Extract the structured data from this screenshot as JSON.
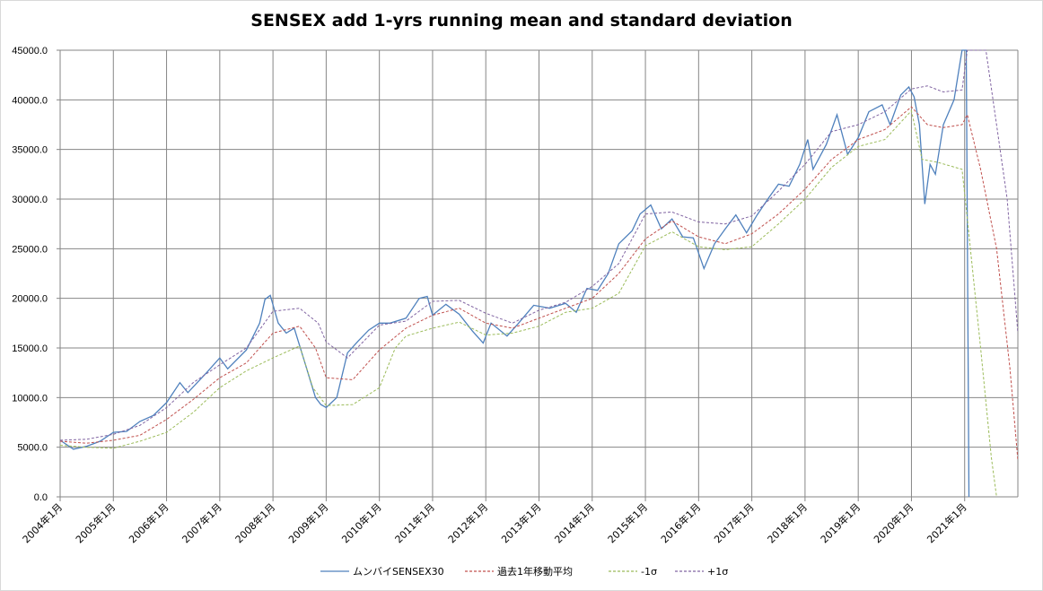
{
  "chart_data": {
    "type": "line",
    "title": "SENSEX add 1-yrs running mean and standard deviation",
    "ylim": [
      0,
      45000
    ],
    "y_ticks": [
      "0.0",
      "5000.0",
      "10000.0",
      "15000.0",
      "20000.0",
      "25000.0",
      "30000.0",
      "35000.0",
      "40000.0",
      "45000.0"
    ],
    "x_ticks": [
      "2004年1月",
      "2005年1月",
      "2006年1月",
      "2007年1月",
      "2008年1月",
      "2009年1月",
      "2010年1月",
      "2011年1月",
      "2012年1月",
      "2013年1月",
      "2014年1月",
      "2015年1月",
      "2016年1月",
      "2017年1月",
      "2018年1月",
      "2019年1月",
      "2020年1月",
      "2021年1月"
    ],
    "x_period": "monthly, 2004-01 to 2021-12",
    "grid": "vertical and horizontal",
    "legend_position": "bottom",
    "series": [
      {
        "name": "ムンバイSENSEX30",
        "color": "#4f81bd",
        "style": "solid",
        "points": [
          [
            2004,
            5700
          ],
          [
            2004.25,
            4800
          ],
          [
            2004.5,
            5100
          ],
          [
            2004.75,
            5600
          ],
          [
            2005,
            6500
          ],
          [
            2005.25,
            6600
          ],
          [
            2005.5,
            7600
          ],
          [
            2005.75,
            8200
          ],
          [
            2006,
            9500
          ],
          [
            2006.25,
            11500
          ],
          [
            2006.4,
            10500
          ],
          [
            2006.75,
            12500
          ],
          [
            2007,
            14000
          ],
          [
            2007.15,
            12900
          ],
          [
            2007.5,
            14800
          ],
          [
            2007.75,
            17500
          ],
          [
            2007.85,
            19900
          ],
          [
            2007.95,
            20300
          ],
          [
            2008.1,
            17500
          ],
          [
            2008.25,
            16500
          ],
          [
            2008.4,
            17000
          ],
          [
            2008.6,
            13500
          ],
          [
            2008.8,
            10000
          ],
          [
            2008.9,
            9300
          ],
          [
            2009,
            9000
          ],
          [
            2009.2,
            10000
          ],
          [
            2009.4,
            14500
          ],
          [
            2009.6,
            15700
          ],
          [
            2009.8,
            16800
          ],
          [
            2010,
            17500
          ],
          [
            2010.2,
            17500
          ],
          [
            2010.5,
            18000
          ],
          [
            2010.75,
            20000
          ],
          [
            2010.9,
            20200
          ],
          [
            2011,
            18300
          ],
          [
            2011.25,
            19400
          ],
          [
            2011.5,
            18400
          ],
          [
            2011.75,
            16700
          ],
          [
            2011.95,
            15500
          ],
          [
            2012.1,
            17500
          ],
          [
            2012.4,
            16200
          ],
          [
            2012.6,
            17400
          ],
          [
            2012.9,
            19300
          ],
          [
            2013.2,
            19000
          ],
          [
            2013.5,
            19500
          ],
          [
            2013.7,
            18600
          ],
          [
            2013.9,
            21000
          ],
          [
            2014.1,
            20800
          ],
          [
            2014.3,
            22500
          ],
          [
            2014.5,
            25500
          ],
          [
            2014.75,
            26800
          ],
          [
            2014.9,
            28500
          ],
          [
            2015.1,
            29400
          ],
          [
            2015.3,
            27000
          ],
          [
            2015.5,
            28000
          ],
          [
            2015.7,
            26200
          ],
          [
            2015.9,
            26100
          ],
          [
            2016.1,
            23000
          ],
          [
            2016.3,
            25500
          ],
          [
            2016.5,
            27000
          ],
          [
            2016.7,
            28400
          ],
          [
            2016.9,
            26600
          ],
          [
            2017.1,
            28400
          ],
          [
            2017.3,
            30000
          ],
          [
            2017.5,
            31500
          ],
          [
            2017.7,
            31300
          ],
          [
            2017.9,
            33500
          ],
          [
            2018.05,
            36000
          ],
          [
            2018.15,
            33000
          ],
          [
            2018.4,
            35500
          ],
          [
            2018.6,
            38500
          ],
          [
            2018.8,
            34500
          ],
          [
            2019.0,
            36200
          ],
          [
            2019.2,
            38800
          ],
          [
            2019.45,
            39500
          ],
          [
            2019.6,
            37500
          ],
          [
            2019.8,
            40500
          ],
          [
            2019.95,
            41300
          ],
          [
            2020.05,
            40300
          ],
          [
            2020.15,
            37500
          ],
          [
            2020.25,
            29500
          ],
          [
            2020.35,
            33500
          ],
          [
            2020.45,
            32500
          ],
          [
            2020.6,
            37500
          ],
          [
            2020.8,
            40000
          ],
          [
            2020.95,
            45000
          ],
          [
            2021.03,
            45000
          ],
          [
            2021.08,
            0
          ]
        ]
      },
      {
        "name": "過去1年移動平均",
        "color": "#c0504d",
        "style": "dashed",
        "points": [
          [
            2004,
            5600
          ],
          [
            2004.5,
            5400
          ],
          [
            2005,
            5700
          ],
          [
            2005.5,
            6200
          ],
          [
            2006,
            7800
          ],
          [
            2006.5,
            9800
          ],
          [
            2007,
            12000
          ],
          [
            2007.5,
            13500
          ],
          [
            2008,
            16500
          ],
          [
            2008.5,
            17200
          ],
          [
            2008.8,
            15000
          ],
          [
            2009,
            12000
          ],
          [
            2009.5,
            11800
          ],
          [
            2010,
            14800
          ],
          [
            2010.5,
            17000
          ],
          [
            2011,
            18300
          ],
          [
            2011.5,
            19000
          ],
          [
            2012,
            17500
          ],
          [
            2012.5,
            17000
          ],
          [
            2013,
            18000
          ],
          [
            2013.5,
            19000
          ],
          [
            2014,
            20000
          ],
          [
            2014.5,
            22500
          ],
          [
            2015,
            26000
          ],
          [
            2015.5,
            27800
          ],
          [
            2016,
            26200
          ],
          [
            2016.5,
            25500
          ],
          [
            2017,
            26500
          ],
          [
            2017.5,
            28500
          ],
          [
            2018,
            31000
          ],
          [
            2018.5,
            34000
          ],
          [
            2019,
            36000
          ],
          [
            2019.5,
            37000
          ],
          [
            2020,
            39300
          ],
          [
            2020.3,
            37500
          ],
          [
            2020.6,
            37200
          ],
          [
            2020.95,
            37500
          ],
          [
            2021.05,
            38500
          ],
          [
            2021.3,
            33000
          ],
          [
            2021.6,
            25000
          ],
          [
            2021.85,
            13000
          ],
          [
            2022,
            3700
          ]
        ]
      },
      {
        "name": "-1σ",
        "color": "#9bbb59",
        "style": "dashed",
        "points": [
          [
            2004,
            5200
          ],
          [
            2004.5,
            5000
          ],
          [
            2005,
            4900
          ],
          [
            2005.5,
            5600
          ],
          [
            2006,
            6500
          ],
          [
            2006.5,
            8500
          ],
          [
            2007,
            11000
          ],
          [
            2007.5,
            12700
          ],
          [
            2008,
            14000
          ],
          [
            2008.5,
            15200
          ],
          [
            2008.75,
            11000
          ],
          [
            2009,
            9200
          ],
          [
            2009.5,
            9300
          ],
          [
            2010,
            11000
          ],
          [
            2010.3,
            15000
          ],
          [
            2010.5,
            16200
          ],
          [
            2011,
            17000
          ],
          [
            2011.5,
            17600
          ],
          [
            2012,
            16300
          ],
          [
            2012.5,
            16500
          ],
          [
            2013,
            17200
          ],
          [
            2013.5,
            18600
          ],
          [
            2014,
            19000
          ],
          [
            2014.5,
            20500
          ],
          [
            2015,
            25300
          ],
          [
            2015.5,
            26700
          ],
          [
            2016,
            25200
          ],
          [
            2016.5,
            24900
          ],
          [
            2017,
            25200
          ],
          [
            2017.5,
            27500
          ],
          [
            2018,
            30000
          ],
          [
            2018.5,
            33200
          ],
          [
            2019,
            35300
          ],
          [
            2019.5,
            36000
          ],
          [
            2020,
            38900
          ],
          [
            2020.2,
            34000
          ],
          [
            2020.5,
            33700
          ],
          [
            2020.95,
            33000
          ],
          [
            2021.05,
            28000
          ],
          [
            2021.3,
            15000
          ],
          [
            2021.5,
            4000
          ],
          [
            2021.6,
            0
          ]
        ]
      },
      {
        "name": "+1σ",
        "color": "#8064a2",
        "style": "dashed",
        "points": [
          [
            2004,
            5700
          ],
          [
            2004.5,
            5800
          ],
          [
            2005,
            6300
          ],
          [
            2005.5,
            7200
          ],
          [
            2006,
            9000
          ],
          [
            2006.5,
            11500
          ],
          [
            2007,
            13300
          ],
          [
            2007.5,
            15000
          ],
          [
            2008,
            18700
          ],
          [
            2008.5,
            19000
          ],
          [
            2008.85,
            17500
          ],
          [
            2009,
            15600
          ],
          [
            2009.4,
            14000
          ],
          [
            2010,
            17300
          ],
          [
            2010.5,
            17700
          ],
          [
            2011,
            19700
          ],
          [
            2011.5,
            19800
          ],
          [
            2012,
            18500
          ],
          [
            2012.5,
            17500
          ],
          [
            2013,
            18800
          ],
          [
            2013.5,
            19600
          ],
          [
            2014,
            21200
          ],
          [
            2014.5,
            23500
          ],
          [
            2015,
            28500
          ],
          [
            2015.5,
            28700
          ],
          [
            2016,
            27700
          ],
          [
            2016.5,
            27500
          ],
          [
            2017,
            28300
          ],
          [
            2017.5,
            30800
          ],
          [
            2018,
            33500
          ],
          [
            2018.5,
            36800
          ],
          [
            2019,
            37500
          ],
          [
            2019.5,
            38800
          ],
          [
            2020,
            41100
          ],
          [
            2020.3,
            41400
          ],
          [
            2020.6,
            40800
          ],
          [
            2020.95,
            41000
          ],
          [
            2021.05,
            45000
          ],
          [
            2021.4,
            45000
          ],
          [
            2021.8,
            30000
          ],
          [
            2022,
            16500
          ]
        ]
      }
    ]
  }
}
